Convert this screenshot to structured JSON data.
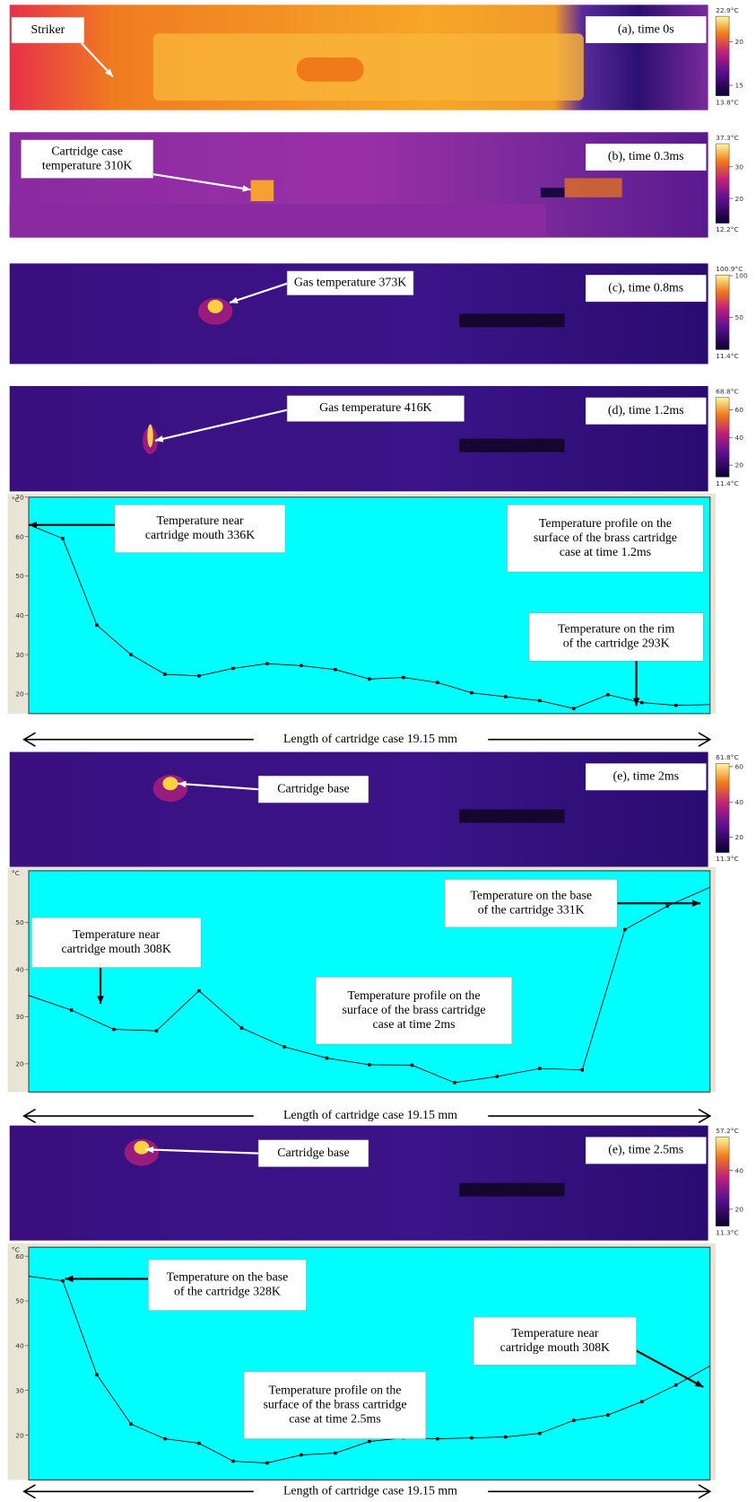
{
  "panels": [
    {
      "caption": "(a), time 0s",
      "annotation": [
        "Striker"
      ],
      "colorbar": [
        "22.9°C",
        "20",
        "15",
        "13.8°C"
      ]
    },
    {
      "caption": "(b), time 0.3ms",
      "annotation": [
        "Cartridge case",
        "temperature 310K"
      ],
      "colorbar": [
        "37.3°C",
        "30",
        "20",
        "12.2°C"
      ]
    },
    {
      "caption": "(c), time 0.8ms",
      "annotation": [
        "Gas temperature 373K"
      ],
      "colorbar": [
        "100.9°C",
        "100",
        "50",
        "11.4°C"
      ]
    },
    {
      "caption": "(d), time 1.2ms",
      "annotation": [
        "Gas temperature 416K"
      ],
      "colorbar": [
        "68.8°C",
        "60",
        "40",
        "20",
        "11.4°C"
      ]
    },
    {
      "caption": "(e), time 2ms",
      "annotation": [
        "Cartridge base"
      ],
      "colorbar": [
        "61.8°C",
        "60",
        "40",
        "20",
        "11.3°C"
      ]
    },
    {
      "caption": "(e), time 2.5ms",
      "annotation": [
        "Cartridge base"
      ],
      "colorbar": [
        "57.2°C",
        "40",
        "20",
        "11.3°C"
      ]
    }
  ],
  "chart_data": [
    {
      "type": "line",
      "ylabel": "°C",
      "color": "#000000",
      "values": [
        63,
        59.5,
        37.5,
        30,
        25,
        24.6,
        26.5,
        27.7,
        27.2,
        26.2,
        23.8,
        24.2,
        22.9,
        20.3,
        19.3,
        18.3,
        16.3,
        19.8,
        17.8,
        17.1,
        17.3
      ],
      "ylim": [
        15,
        70
      ],
      "yticks": [
        20,
        30,
        40,
        50,
        60,
        70
      ],
      "annotations": [
        [
          "Temperature near",
          "cartridge mouth 336K"
        ],
        [
          "Temperature profile on the",
          "surface of the brass cartridge",
          "case at time 1.2ms"
        ],
        [
          "Temperature on the rim",
          "of the cartridge 293K"
        ]
      ],
      "length_label": "Length of cartridge case 19.15 mm"
    },
    {
      "type": "line",
      "ylabel": "°C",
      "color": "#000000",
      "values": [
        34.5,
        31.4,
        27.3,
        27,
        35.5,
        27.6,
        23.6,
        21.2,
        19.8,
        19.7,
        16,
        17.3,
        19,
        18.7,
        48.5,
        53.5,
        57.5
      ],
      "ylim": [
        14,
        61
      ],
      "yticks": [
        20,
        30,
        40,
        50
      ],
      "annotations": [
        [
          "Temperature on the base",
          "of the cartridge 331K"
        ],
        [
          "Temperature near",
          "cartridge mouth 308K"
        ],
        [
          "Temperature profile on the",
          "surface of the brass cartridge",
          "case at time 2ms"
        ]
      ],
      "length_label": "Length of cartridge case 19.15 mm"
    },
    {
      "type": "line",
      "ylabel": "°C",
      "color": "#000000",
      "values": [
        55.5,
        54.5,
        33.5,
        22.5,
        19.2,
        18.2,
        14.2,
        13.8,
        15.6,
        16,
        18.6,
        19.4,
        19.2,
        19.4,
        19.6,
        20.4,
        23.3,
        24.5,
        27.5,
        31.2,
        35.5
      ],
      "ylim": [
        10,
        62
      ],
      "yticks": [
        20,
        30,
        40,
        50,
        60
      ],
      "annotations": [
        [
          "Temperature on the base",
          "of the cartridge 328K"
        ],
        [
          "Temperature near",
          "cartridge mouth 308K"
        ],
        [
          "Temperature profile on the",
          "surface of the brass cartridge",
          "case at time 2.5ms"
        ]
      ],
      "length_label": "Length of cartridge case 19.15 mm"
    }
  ]
}
